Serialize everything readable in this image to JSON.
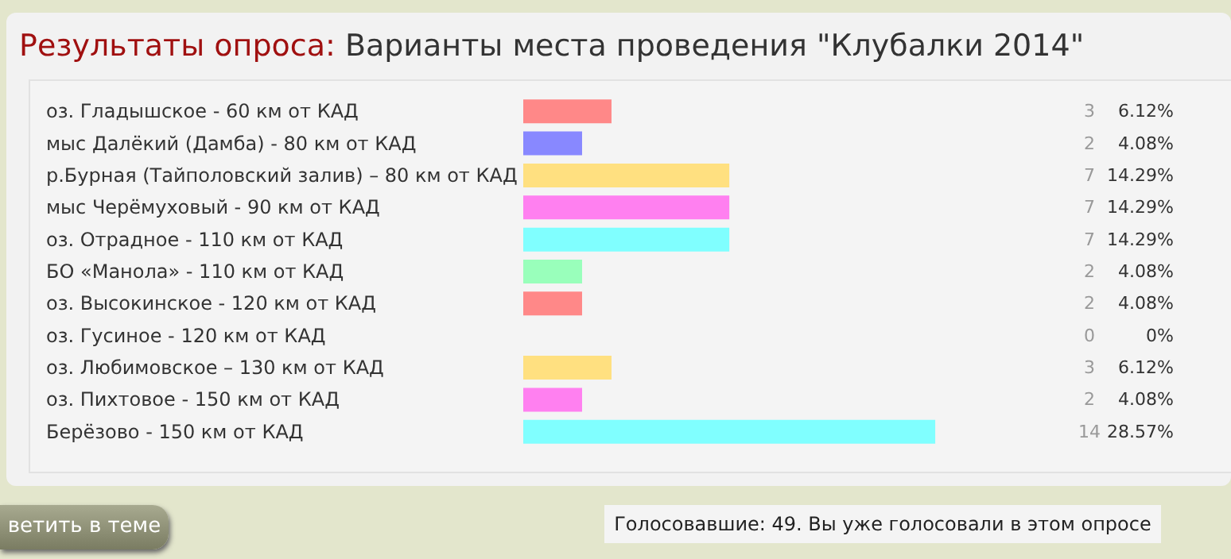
{
  "chart_data": {
    "type": "bar",
    "orientation": "horizontal",
    "title": "Результаты опроса:",
    "subtitle": "Варианты места проведения \"Клубалки 2014\"",
    "categories": [
      "оз. Гладышское - 60 км от КАД",
      "мыс Далёкий (Дамба) - 80 км от КАД",
      "р.Бурная (Тайполовский залив) – 80 км от КАД",
      "мыс Черёмуховый - 90 км от КАД",
      "оз. Отрадное - 110 км от КАД",
      "БО «Манола» - 110 км от КАД",
      "оз. Высокинское - 120 км от КАД",
      "оз. Гусиное - 120 км от КАД",
      "оз. Любимовское – 130 км от КАД",
      "оз. Пихтовое - 150 км от КАД",
      "Берёзово - 150 км от КАД"
    ],
    "values": [
      6.12,
      4.08,
      14.29,
      14.29,
      14.29,
      4.08,
      4.08,
      0,
      6.12,
      4.08,
      28.57
    ],
    "colors": [
      "#ff8888",
      "#8888ff",
      "#ffe080",
      "#ff80f0",
      "#80ffff",
      "#99ffbb",
      "#ff8888",
      "#ffe080",
      "#ffe080",
      "#ff80f0",
      "#80ffff"
    ],
    "value_labels": [
      "6.12%",
      "4.08%",
      "14.29%",
      "14.29%",
      "14.29%",
      "4.08%",
      "4.08%",
      "0%",
      "6.12%",
      "4.08%",
      "28.57%"
    ],
    "annotations": [
      "Голосовавшие: 49. Вы уже голосовали в этом опросе",
      "ветить в теме",
      "3",
      "2",
      "7",
      "7",
      "7",
      "2",
      "2",
      "0",
      "3",
      "2",
      "14"
    ]
  }
}
